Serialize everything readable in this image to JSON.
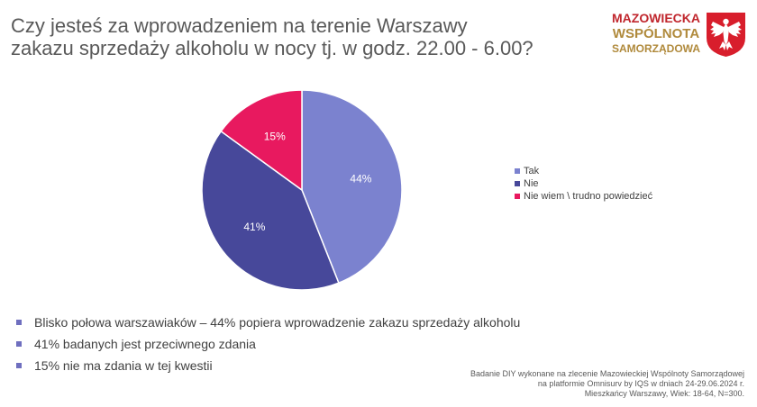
{
  "title": {
    "line1": "Czy jesteś za wprowadzeniem na terenie Warszawy",
    "line2": "zakazu sprzedaży alkoholu w nocy tj. w godz. 22.00 - 6.00?"
  },
  "logo": {
    "line1": "MAZOWIECKA",
    "line2": "WSPÓLNOTA",
    "line3": "SAMORZĄDOWA"
  },
  "chart_data": {
    "type": "pie",
    "categories": [
      "Tak",
      "Nie",
      "Nie wiem \\ trudno powiedzieć"
    ],
    "values": [
      44,
      41,
      15
    ],
    "data_labels": [
      "44%",
      "41%",
      "15%"
    ],
    "colors": [
      "#7b82cf",
      "#47489a",
      "#e8195f"
    ],
    "legend_position": "right",
    "start_angle": "top, clockwise"
  },
  "bullets": [
    "Blisko połowa warszawiaków – 44% popiera wprowadzenie zakazu sprzedaży alkoholu",
    "41% badanych jest przeciwnego zdania",
    "15% nie ma zdania w tej kwestii"
  ],
  "footnote": {
    "line1": "Badanie DIY wykonane na zlecenie Mazowieckiej Wspólnoty Samorządowej",
    "line2": "na platformie Omnisurv by IQS w dniach 24-29.06.2024 r.",
    "line3": "Mieszkańcy Warszawy, Wiek: 18-64, N=300."
  },
  "colors": {
    "title": "#595959",
    "logo_red": "#c0262d",
    "logo_gold": "#b08a3c",
    "bullet_marker": "#6f6fbf"
  }
}
